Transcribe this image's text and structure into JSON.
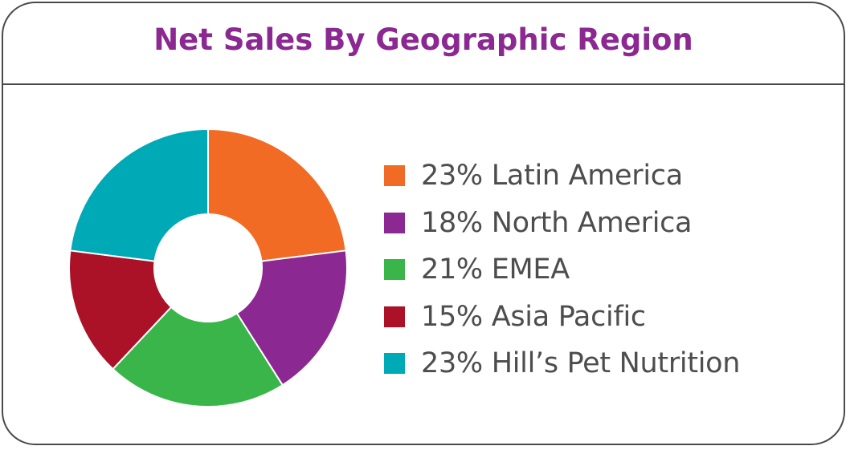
{
  "chart_data": {
    "type": "pie",
    "title": "Net Sales By Geographic Region",
    "slices": [
      {
        "label": "Latin America",
        "value": 23,
        "display": "23% Latin America",
        "color": "#f26b24"
      },
      {
        "label": "North America",
        "value": 18,
        "display": "18% North America",
        "color": "#8b2891"
      },
      {
        "label": "EMEA",
        "value": 21,
        "display": "21% EMEA",
        "color": "#3ab54a"
      },
      {
        "label": "Asia Pacific",
        "value": 15,
        "display": "15% Asia Pacific",
        "color": "#ab1228"
      },
      {
        "label": "Hill’s Pet Nutrition",
        "value": 23,
        "display": "23% Hill’s Pet Nutrition",
        "color": "#00a9b6"
      }
    ],
    "donut": true,
    "legend_position": "right"
  },
  "colors": {
    "title": "#8b2891",
    "border": "#4a4a4a",
    "legend_text": "#4d4d4d"
  }
}
